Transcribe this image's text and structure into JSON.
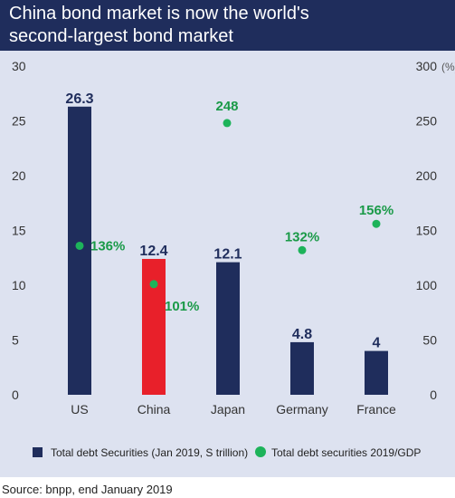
{
  "header": {
    "title_line1": "China bond market is now the world's",
    "title_line2": "second-largest bond market"
  },
  "source": "Source: bnpp, end January 2019",
  "colors": {
    "header_bg": "#1f2d5c",
    "panel_bg": "#dde2f0",
    "bar": "#1f2d5c",
    "bar_highlight": "#e8202a",
    "dot": "#1db35a",
    "dot_label": "#1a9a48"
  },
  "chart_data": {
    "type": "bar",
    "categories": [
      "US",
      "China",
      "Japan",
      "Germany",
      "France"
    ],
    "highlight_category": "China",
    "series": [
      {
        "name": "Total debt Securities (Jan 2019, S trillion)",
        "type": "bar",
        "axis": "left",
        "values": [
          26.3,
          12.4,
          12.1,
          4.8,
          4
        ],
        "labels": [
          "26.3",
          "12.4",
          "12.1",
          "4.8",
          "4"
        ]
      },
      {
        "name": "Total debt securities 2019/GDP",
        "type": "scatter",
        "axis": "right",
        "values": [
          136,
          101,
          248,
          132,
          156
        ],
        "labels": [
          "136%",
          "101%",
          "248",
          "132%",
          "156%"
        ]
      }
    ],
    "left_axis": {
      "ylim": [
        0,
        30
      ],
      "ticks": [
        "0",
        "5",
        "10",
        "15",
        "20",
        "25",
        "30"
      ]
    },
    "right_axis": {
      "ylim": [
        0,
        300
      ],
      "ticks": [
        "0",
        "50",
        "100",
        "150",
        "200",
        "250",
        "300"
      ],
      "unit": "(%)"
    },
    "grid": false,
    "legend_position": "bottom"
  }
}
